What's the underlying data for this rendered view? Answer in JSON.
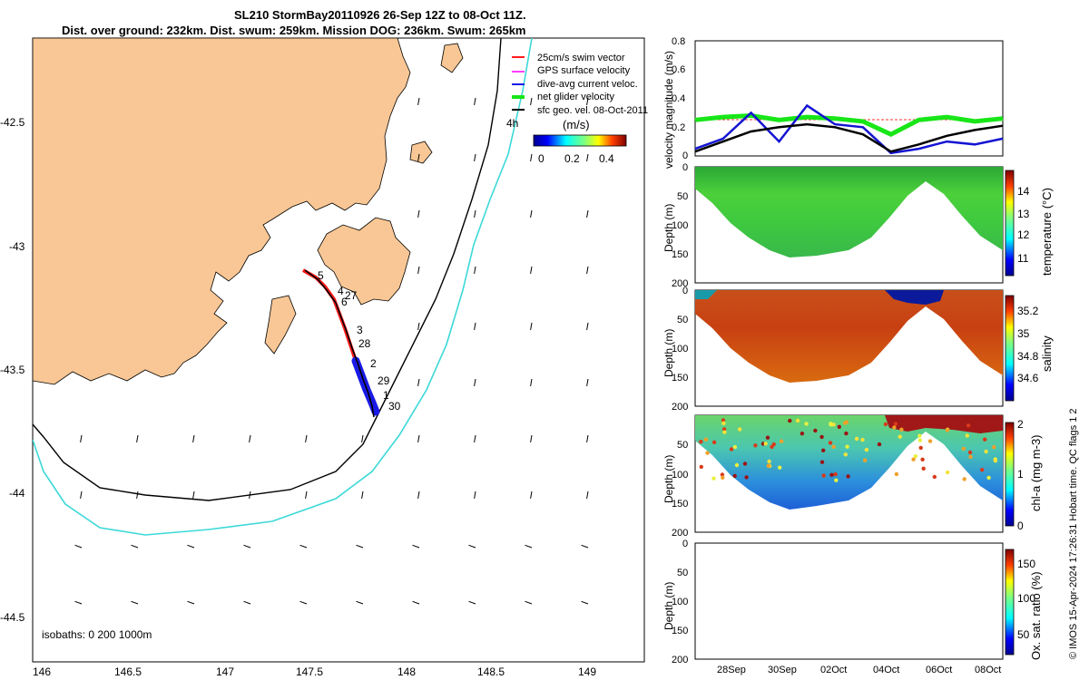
{
  "title": {
    "line1": "SL210 StormBay20110926 26-Sep 12Z to 08-Oct 11Z.",
    "line2": "Dist. over ground: 232km. Dist. swum: 259km. Mission DOG: 236km. Swum: 265km"
  },
  "map": {
    "legend": [
      "25cm/s swim vector",
      "GPS surface velocity",
      "dive-avg current veloc.",
      "net glider velocity",
      "sfc geo. vel. 08-Oct-2011"
    ],
    "colorbar": {
      "title": "(m/s)",
      "ticks": [
        "0",
        "0.2",
        "0.4"
      ]
    },
    "isobaths_label": "isobaths: 0   200  1000m",
    "label_4h": "4h",
    "day_labels": [
      "5",
      "4",
      "27",
      "6",
      "3",
      "28",
      "2",
      "29",
      "1",
      "30"
    ],
    "lon_ticks": [
      "146",
      "146.5",
      "147",
      "147.5",
      "148",
      "148.5",
      "149"
    ],
    "lat_ticks": [
      "-42.5",
      "-43",
      "-43.5",
      "-44",
      "-44.5"
    ]
  },
  "panels": {
    "velocity": {
      "ylabel": "velocity magnitude (m/s)",
      "yticks": [
        "0.8",
        "0.6",
        "0.4",
        "0.2",
        "0"
      ]
    },
    "temperature": {
      "ylabel": "Depth (m)",
      "cblabel": "temperature (°C)",
      "yticks": [
        "0",
        "50",
        "100",
        "150",
        "200"
      ],
      "cbticks": [
        "14",
        "13",
        "12",
        "11"
      ]
    },
    "salinity": {
      "ylabel": "Depth (m)",
      "cblabel": "salinity",
      "yticks": [
        "0",
        "50",
        "100",
        "150",
        "200"
      ],
      "cbticks": [
        "35.2",
        "35",
        "34.8",
        "34.6"
      ]
    },
    "chla": {
      "ylabel": "Depth (m)",
      "cblabel": "chl-a (mg m-3)",
      "yticks": [
        "0",
        "50",
        "100",
        "150",
        "200"
      ],
      "cbticks": [
        "2",
        "1",
        "0"
      ]
    },
    "oxygen": {
      "ylabel": "Depth (m)",
      "cblabel": "Ox. sat. ratio (%)",
      "yticks": [
        "0",
        "50",
        "100",
        "150",
        "200"
      ],
      "cbticks": [
        "150",
        "100",
        "50"
      ]
    },
    "date_ticks": [
      "28Sep",
      "30Sep",
      "02Oct",
      "04Oct",
      "06Oct",
      "08Oct"
    ]
  },
  "footer_text": "© IMOS 15-Apr-2024 17:26:31 Hobart time. QC flags 1  2",
  "chart_data": {
    "type": "line",
    "title": "",
    "xlabel": "",
    "ylabel": "velocity magnitude (m/s)",
    "x": [
      "27Sep",
      "28Sep",
      "29Sep",
      "30Sep",
      "01Oct",
      "02Oct",
      "03Oct",
      "04Oct",
      "05Oct",
      "06Oct",
      "07Oct",
      "08Oct"
    ],
    "ylim": [
      0,
      0.8
    ],
    "series": [
      {
        "name": "net glider velocity",
        "values": [
          0.25,
          0.27,
          0.28,
          0.25,
          0.27,
          0.26,
          0.24,
          0.15,
          0.25,
          0.27,
          0.24,
          0.26
        ]
      },
      {
        "name": "sfc geo. vel. 08-Oct-2011",
        "values": [
          0.03,
          0.1,
          0.17,
          0.2,
          0.22,
          0.2,
          0.15,
          0.03,
          0.08,
          0.14,
          0.18,
          0.21
        ]
      },
      {
        "name": "dive-avg current veloc.",
        "values": [
          0.05,
          0.12,
          0.3,
          0.1,
          0.35,
          0.22,
          0.2,
          0.02,
          0.05,
          0.1,
          0.08,
          0.12
        ]
      }
    ],
    "colors": {
      "net": "#18e618",
      "dive": "#1414d2",
      "geo": "#000000",
      "land": "#f9c795",
      "coast1000": "#3cd8d8"
    }
  }
}
